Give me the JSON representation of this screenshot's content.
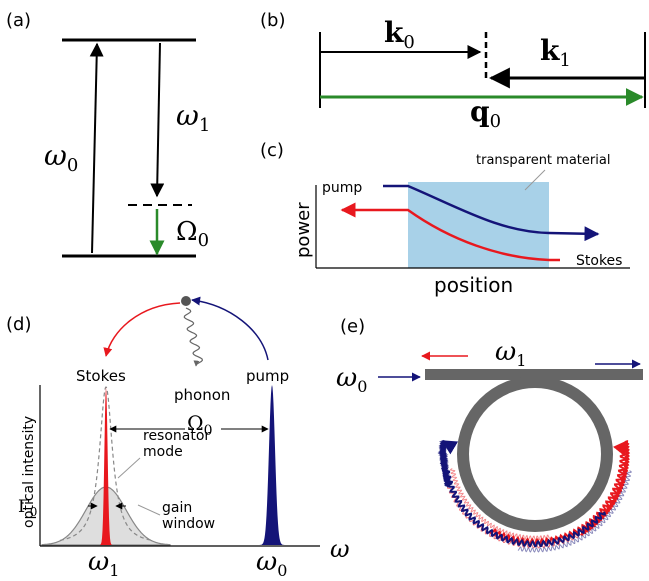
{
  "panels": {
    "a": {
      "label": "(a)",
      "pump": {
        "base": "ω",
        "sub": "0"
      },
      "stokes": {
        "base": "ω",
        "sub": "1"
      },
      "phonon": {
        "base": "Ω",
        "sub": "0"
      }
    },
    "b": {
      "label": "(b)",
      "k0": {
        "base": "k",
        "sub": "0"
      },
      "k1": {
        "base": "k",
        "sub": "1"
      },
      "q0": {
        "base": "q",
        "sub": "0"
      }
    },
    "c": {
      "label": "(c)",
      "material": "transparent material",
      "pump": "pump",
      "stokes": "Stokes",
      "ylabel": "power",
      "xlabel": "position"
    },
    "d": {
      "label": "(d)",
      "stokes": "Stokes",
      "phonon": "phonon",
      "pump": "pump",
      "ylabel": "optical intensity",
      "shift": {
        "base": "Ω",
        "sub": "0"
      },
      "resonator": [
        "resonator",
        "mode"
      ],
      "linewidth": {
        "base": "Γ",
        "sub": "0"
      },
      "gain": [
        "gain",
        "window"
      ],
      "stokes_freq": {
        "base": "ω",
        "sub": "1"
      },
      "pump_freq": {
        "base": "ω",
        "sub": "0"
      },
      "axis": "ω"
    },
    "e": {
      "label": "(e)",
      "input": {
        "base": "ω",
        "sub": "0"
      },
      "output": {
        "base": "ω",
        "sub": "1"
      }
    }
  }
}
